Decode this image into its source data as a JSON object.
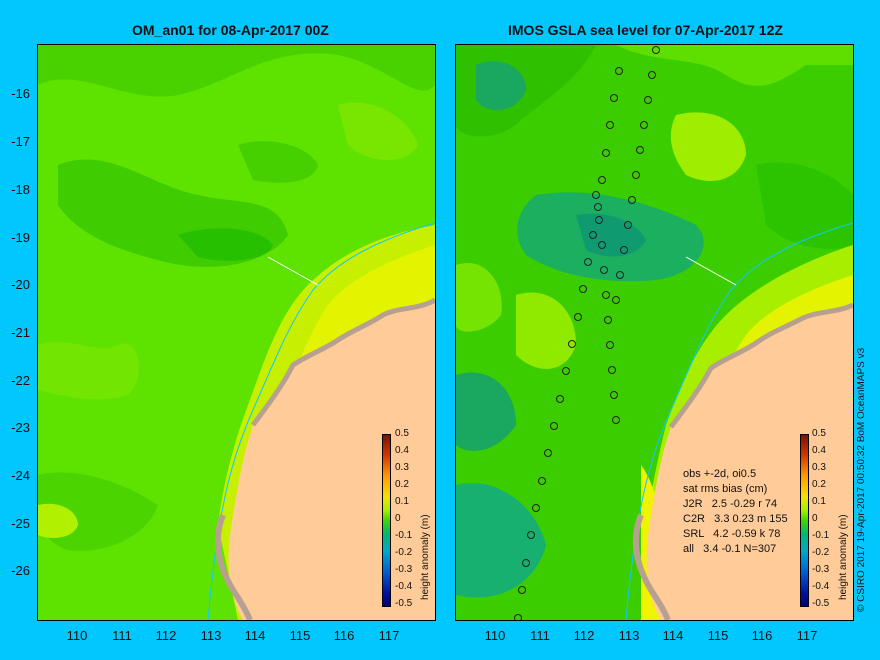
{
  "left_panel": {
    "title": "OM_an01 for 08-Apr-2017 00Z"
  },
  "right_panel": {
    "title": "IMOS GSLA sea level  for 07-Apr-2017 12Z"
  },
  "axes": {
    "y_ticks": [
      "-16",
      "-17",
      "-18",
      "-19",
      "-20",
      "-21",
      "-22",
      "-23",
      "-24",
      "-25",
      "-26"
    ],
    "x_ticks": [
      "110",
      "111",
      "112",
      "113",
      "114",
      "115",
      "116",
      "117"
    ]
  },
  "colorbar": {
    "title": "height anomaly (m)",
    "labels": [
      "0.5",
      "0.4",
      "0.3",
      "0.2",
      "0.1",
      "0",
      "-0.1",
      "-0.2",
      "-0.3",
      "-0.4",
      "-0.5"
    ]
  },
  "stats": {
    "l1": "obs +-2d, oi0.5",
    "l2": "sat rms bias (cm)",
    "l3": "J2R   2.5 -0.29 r 74",
    "l4": "C2R   3.3 0.23 m 155",
    "l5": "SRL   4.2 -0.59 k 78",
    "l6": "all   3.4 -0.1 N=307"
  },
  "credit": "© CSIRO 2017  19-Apr-2017 00:50:32 BoM OceanMAPS v3",
  "colors": {
    "background": "#00c8ff",
    "land": "#ffcc99",
    "coast": "#b8a090"
  }
}
